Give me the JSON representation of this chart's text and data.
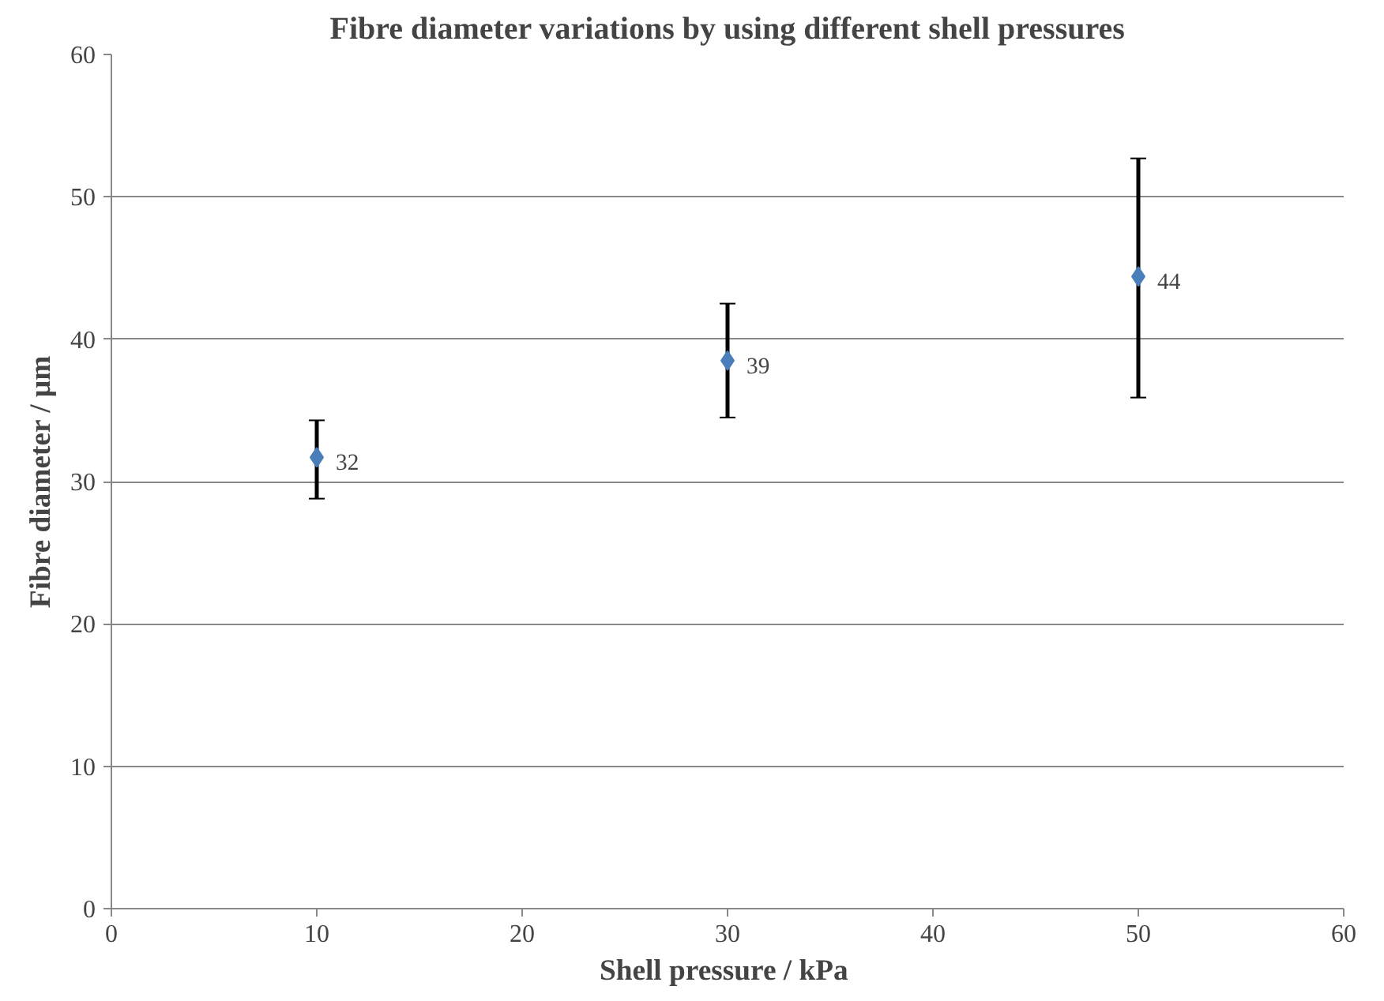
{
  "chart_data": {
    "type": "scatter",
    "title": "Fibre diameter variations by using different shell pressures",
    "xlabel": "Shell pressure  / kPa",
    "ylabel": "Fibre diameter / µm",
    "x": [
      10,
      30,
      50
    ],
    "series": [
      {
        "color": "#4a7ebb",
        "values": [
          31.7,
          38.5,
          44.4
        ],
        "errors": [
          [
            28.8,
            34.3
          ],
          [
            34.5,
            42.5
          ],
          [
            35.9,
            52.7
          ]
        ],
        "value_labels": [
          "32",
          "39",
          "44"
        ]
      }
    ],
    "xlim": [
      0,
      60
    ],
    "xticks": [
      0,
      10,
      20,
      30,
      40,
      50,
      60
    ],
    "ylim": [
      0,
      60
    ],
    "yticks": [
      0,
      10,
      20,
      30,
      40,
      50,
      60
    ],
    "grid": "y",
    "marker": "diamond"
  }
}
